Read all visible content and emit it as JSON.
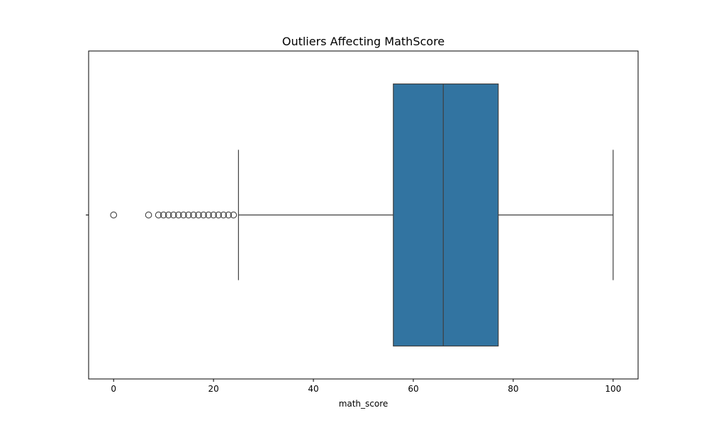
{
  "chart_data": {
    "type": "box",
    "title": "Outliers Affecting MathScore",
    "xlabel": "math_score",
    "ylabel": "",
    "xlim": [
      -5,
      105
    ],
    "xticks": [
      0,
      20,
      40,
      60,
      80,
      100
    ],
    "grid": false,
    "box": {
      "whisker_low": 25,
      "q1": 56,
      "median": 66,
      "q3": 77,
      "whisker_high": 100,
      "fill_color": "#3274a1",
      "line_color": "#3f3f3f"
    },
    "outliers": [
      0,
      7,
      9,
      10,
      11,
      12,
      13,
      14,
      15,
      16,
      17,
      18,
      19,
      20,
      21,
      22,
      23,
      24
    ]
  }
}
